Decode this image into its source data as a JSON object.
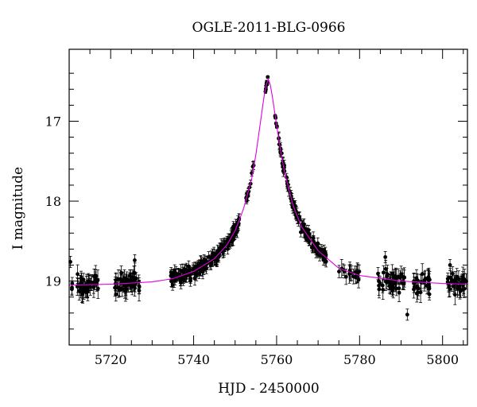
{
  "chart_data": {
    "type": "scatter",
    "title": "OGLE-2011-BLG-0966",
    "xlabel": "HJD - 2450000",
    "ylabel": "I magnitude",
    "xlim": [
      5710,
      5806
    ],
    "ylim": [
      19.8,
      16.1
    ],
    "y_inverted": true,
    "x_ticks": [
      5720,
      5740,
      5760,
      5780,
      5800
    ],
    "y_ticks": [
      17,
      18,
      19
    ],
    "grid": false,
    "colors": {
      "data": "#000000",
      "model": "#e000e0"
    },
    "model": {
      "type": "microlensing-fit",
      "x": [
        5710,
        5720,
        5730,
        5735,
        5740,
        5745,
        5748,
        5750,
        5752,
        5754,
        5755,
        5756,
        5757,
        5757.5,
        5758,
        5758.5,
        5759,
        5760,
        5761,
        5762,
        5764,
        5766,
        5770,
        5775,
        5780,
        5790,
        5800,
        5806
      ],
      "y": [
        19.05,
        19.04,
        19.01,
        18.97,
        18.88,
        18.72,
        18.55,
        18.37,
        18.1,
        17.72,
        17.42,
        17.05,
        16.68,
        16.55,
        16.47,
        16.55,
        16.7,
        17.05,
        17.38,
        17.66,
        18.06,
        18.32,
        18.62,
        18.84,
        18.93,
        19.0,
        19.03,
        19.04
      ]
    },
    "clusters": [
      {
        "x0": 5710,
        "x1": 5711,
        "n": 3,
        "trend": "model",
        "scatter": 0.12,
        "err": 0.07
      },
      {
        "x0": 5711.5,
        "x1": 5717,
        "n": 48,
        "trend": "model",
        "scatter": 0.12,
        "err": 0.1
      },
      {
        "x0": 5721,
        "x1": 5727,
        "n": 55,
        "trend": "model",
        "scatter": 0.12,
        "err": 0.1
      },
      {
        "x0": 5734.5,
        "x1": 5751,
        "n": 190,
        "trend": "model",
        "scatter": 0.08,
        "err": 0.07
      },
      {
        "x0": 5752.5,
        "x1": 5754.5,
        "n": 16,
        "trend": "model",
        "scatter": 0.07,
        "err": 0.05
      },
      {
        "x0": 5757.3,
        "x1": 5757.9,
        "n": 10,
        "trend": "model",
        "scatter": 0.04,
        "err": 0.02
      },
      {
        "x0": 5759.5,
        "x1": 5760.1,
        "n": 6,
        "trend": "model",
        "scatter": 0.03,
        "err": 0.02
      },
      {
        "x0": 5760.5,
        "x1": 5772,
        "n": 130,
        "trend": "model",
        "scatter": 0.07,
        "err": 0.06
      },
      {
        "x0": 5775,
        "x1": 5780,
        "n": 20,
        "trend": "model",
        "scatter": 0.1,
        "err": 0.09
      },
      {
        "x0": 5784,
        "x1": 5791,
        "n": 45,
        "trend": "model",
        "scatter": 0.13,
        "err": 0.1
      },
      {
        "x0": 5793,
        "x1": 5797,
        "n": 30,
        "trend": "model",
        "scatter": 0.13,
        "err": 0.1
      },
      {
        "x0": 5801,
        "x1": 5806,
        "n": 35,
        "trend": "model",
        "scatter": 0.13,
        "err": 0.1
      }
    ],
    "isolated_points": [
      {
        "x": 5710.3,
        "y": 18.76
      },
      {
        "x": 5725.8,
        "y": 18.74
      },
      {
        "x": 5791.5,
        "y": 19.42
      },
      {
        "x": 5801.8,
        "y": 18.8
      },
      {
        "x": 5786.2,
        "y": 18.7
      }
    ]
  }
}
